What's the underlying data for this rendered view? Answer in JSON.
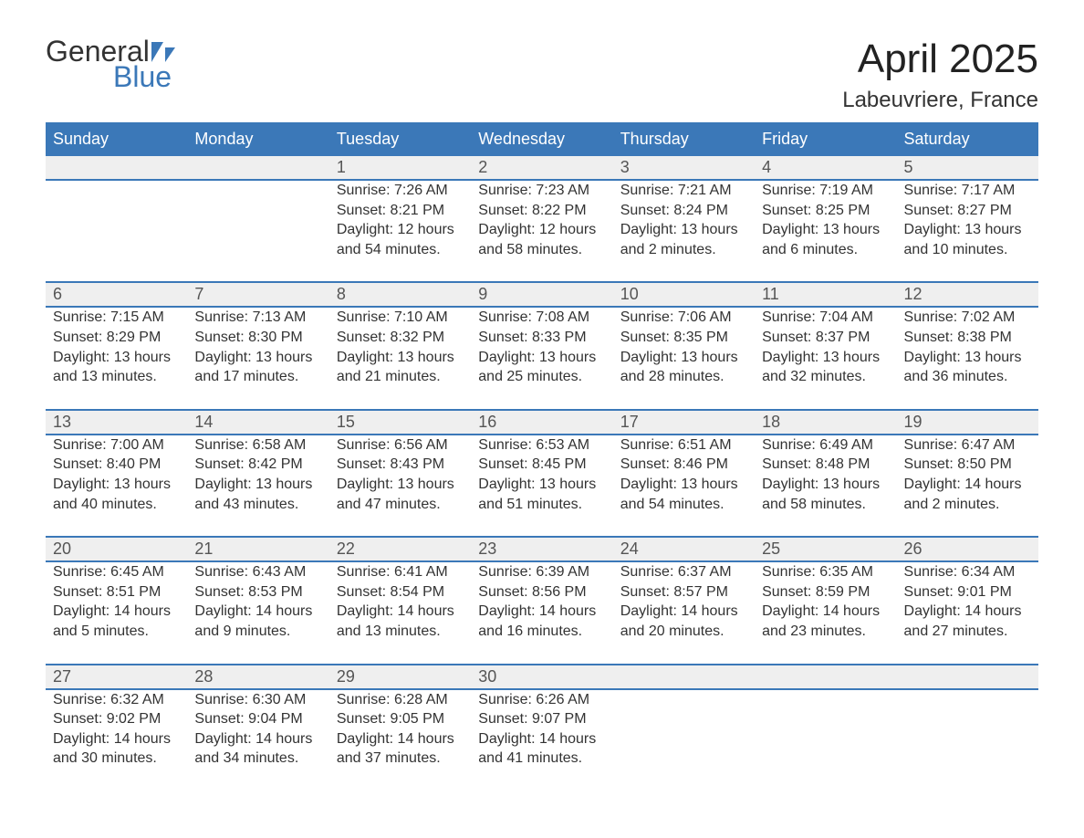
{
  "logo": {
    "text_top": "General",
    "text_bottom": "Blue",
    "icon_color": "#3b78b8"
  },
  "title": "April 2025",
  "location": "Labeuvriere, France",
  "colors": {
    "header_bg": "#3b78b8",
    "header_text": "#ffffff",
    "daynum_bg": "#efefef",
    "row_border": "#3b78b8",
    "body_text": "#333333",
    "page_bg": "#ffffff"
  },
  "typography": {
    "title_fontsize": 44,
    "location_fontsize": 24,
    "header_fontsize": 18,
    "body_fontsize": 16,
    "font_family": "Arial"
  },
  "layout": {
    "columns": 7,
    "weeks": 5,
    "start_day_index": 2
  },
  "weekdays": [
    "Sunday",
    "Monday",
    "Tuesday",
    "Wednesday",
    "Thursday",
    "Friday",
    "Saturday"
  ],
  "days": [
    {
      "n": 1,
      "sunrise": "7:26 AM",
      "sunset": "8:21 PM",
      "daylight": "12 hours and 54 minutes."
    },
    {
      "n": 2,
      "sunrise": "7:23 AM",
      "sunset": "8:22 PM",
      "daylight": "12 hours and 58 minutes."
    },
    {
      "n": 3,
      "sunrise": "7:21 AM",
      "sunset": "8:24 PM",
      "daylight": "13 hours and 2 minutes."
    },
    {
      "n": 4,
      "sunrise": "7:19 AM",
      "sunset": "8:25 PM",
      "daylight": "13 hours and 6 minutes."
    },
    {
      "n": 5,
      "sunrise": "7:17 AM",
      "sunset": "8:27 PM",
      "daylight": "13 hours and 10 minutes."
    },
    {
      "n": 6,
      "sunrise": "7:15 AM",
      "sunset": "8:29 PM",
      "daylight": "13 hours and 13 minutes."
    },
    {
      "n": 7,
      "sunrise": "7:13 AM",
      "sunset": "8:30 PM",
      "daylight": "13 hours and 17 minutes."
    },
    {
      "n": 8,
      "sunrise": "7:10 AM",
      "sunset": "8:32 PM",
      "daylight": "13 hours and 21 minutes."
    },
    {
      "n": 9,
      "sunrise": "7:08 AM",
      "sunset": "8:33 PM",
      "daylight": "13 hours and 25 minutes."
    },
    {
      "n": 10,
      "sunrise": "7:06 AM",
      "sunset": "8:35 PM",
      "daylight": "13 hours and 28 minutes."
    },
    {
      "n": 11,
      "sunrise": "7:04 AM",
      "sunset": "8:37 PM",
      "daylight": "13 hours and 32 minutes."
    },
    {
      "n": 12,
      "sunrise": "7:02 AM",
      "sunset": "8:38 PM",
      "daylight": "13 hours and 36 minutes."
    },
    {
      "n": 13,
      "sunrise": "7:00 AM",
      "sunset": "8:40 PM",
      "daylight": "13 hours and 40 minutes."
    },
    {
      "n": 14,
      "sunrise": "6:58 AM",
      "sunset": "8:42 PM",
      "daylight": "13 hours and 43 minutes."
    },
    {
      "n": 15,
      "sunrise": "6:56 AM",
      "sunset": "8:43 PM",
      "daylight": "13 hours and 47 minutes."
    },
    {
      "n": 16,
      "sunrise": "6:53 AM",
      "sunset": "8:45 PM",
      "daylight": "13 hours and 51 minutes."
    },
    {
      "n": 17,
      "sunrise": "6:51 AM",
      "sunset": "8:46 PM",
      "daylight": "13 hours and 54 minutes."
    },
    {
      "n": 18,
      "sunrise": "6:49 AM",
      "sunset": "8:48 PM",
      "daylight": "13 hours and 58 minutes."
    },
    {
      "n": 19,
      "sunrise": "6:47 AM",
      "sunset": "8:50 PM",
      "daylight": "14 hours and 2 minutes."
    },
    {
      "n": 20,
      "sunrise": "6:45 AM",
      "sunset": "8:51 PM",
      "daylight": "14 hours and 5 minutes."
    },
    {
      "n": 21,
      "sunrise": "6:43 AM",
      "sunset": "8:53 PM",
      "daylight": "14 hours and 9 minutes."
    },
    {
      "n": 22,
      "sunrise": "6:41 AM",
      "sunset": "8:54 PM",
      "daylight": "14 hours and 13 minutes."
    },
    {
      "n": 23,
      "sunrise": "6:39 AM",
      "sunset": "8:56 PM",
      "daylight": "14 hours and 16 minutes."
    },
    {
      "n": 24,
      "sunrise": "6:37 AM",
      "sunset": "8:57 PM",
      "daylight": "14 hours and 20 minutes."
    },
    {
      "n": 25,
      "sunrise": "6:35 AM",
      "sunset": "8:59 PM",
      "daylight": "14 hours and 23 minutes."
    },
    {
      "n": 26,
      "sunrise": "6:34 AM",
      "sunset": "9:01 PM",
      "daylight": "14 hours and 27 minutes."
    },
    {
      "n": 27,
      "sunrise": "6:32 AM",
      "sunset": "9:02 PM",
      "daylight": "14 hours and 30 minutes."
    },
    {
      "n": 28,
      "sunrise": "6:30 AM",
      "sunset": "9:04 PM",
      "daylight": "14 hours and 34 minutes."
    },
    {
      "n": 29,
      "sunrise": "6:28 AM",
      "sunset": "9:05 PM",
      "daylight": "14 hours and 37 minutes."
    },
    {
      "n": 30,
      "sunrise": "6:26 AM",
      "sunset": "9:07 PM",
      "daylight": "14 hours and 41 minutes."
    }
  ],
  "labels": {
    "sunrise_prefix": "Sunrise: ",
    "sunset_prefix": "Sunset: ",
    "daylight_prefix": "Daylight: "
  }
}
